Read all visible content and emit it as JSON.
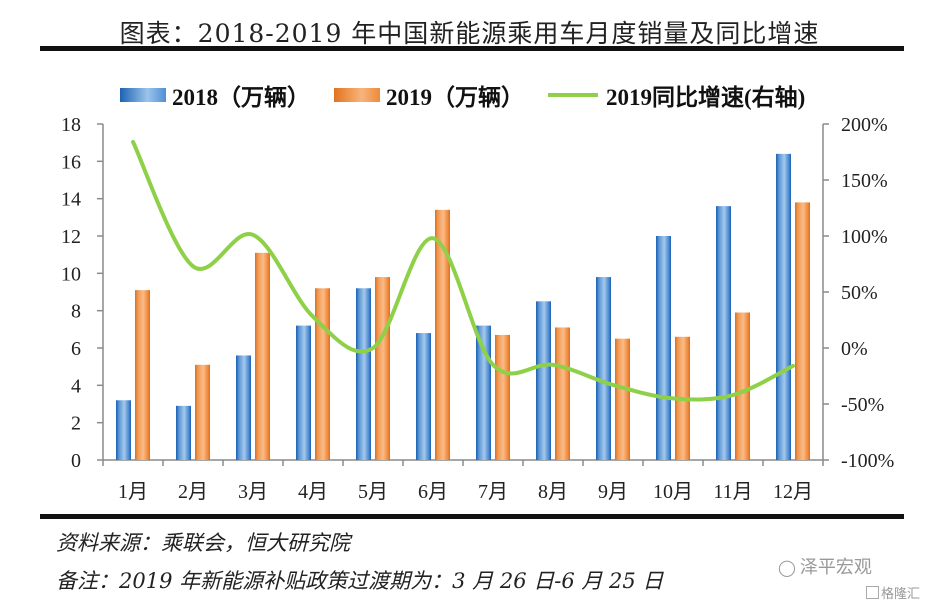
{
  "header": {
    "title": "图表：2018-2019 年中国新能源乘用车月度销量及同比增速"
  },
  "chart_data": {
    "type": "bar",
    "title": "图表：2018-2019 年中国新能源乘用车月度销量及同比增速",
    "categories": [
      "1月",
      "2月",
      "3月",
      "4月",
      "5月",
      "6月",
      "7月",
      "8月",
      "9月",
      "10月",
      "11月",
      "12月"
    ],
    "series": [
      {
        "name": "2018（万辆）",
        "type": "bar",
        "axis": "left",
        "color": "#1c64b4",
        "values": [
          3.2,
          2.9,
          5.6,
          7.2,
          9.2,
          6.8,
          7.2,
          8.5,
          9.8,
          12.0,
          13.6,
          16.4
        ]
      },
      {
        "name": "2019（万辆）",
        "type": "bar",
        "axis": "left",
        "color": "#e0741f",
        "values": [
          9.1,
          5.1,
          11.1,
          9.2,
          9.8,
          13.4,
          6.7,
          7.1,
          6.5,
          6.6,
          7.9,
          13.8
        ]
      },
      {
        "name": "2019同比增速(右轴)",
        "type": "line",
        "axis": "right",
        "color": "#8ed047",
        "smooth": true,
        "values": [
          184,
          73,
          101,
          28,
          0,
          98,
          -15,
          -15,
          -33,
          -45,
          -42,
          -16
        ]
      }
    ],
    "y_left": {
      "ylim": [
        0,
        18
      ],
      "ticks": [
        "0",
        "2",
        "4",
        "6",
        "8",
        "10",
        "12",
        "14",
        "16",
        "18"
      ]
    },
    "y_right": {
      "ylim": [
        -100,
        200
      ],
      "ticks": [
        "-100%",
        "-50%",
        "0%",
        "50%",
        "100%",
        "150%",
        "200%"
      ]
    },
    "xlabel": "",
    "ylabel": "",
    "grid": false,
    "legend_position": "top"
  },
  "legend": {
    "items": [
      "2018（万辆）",
      "2019（万辆）",
      "2019同比增速(右轴)"
    ]
  },
  "footer": {
    "source": "资料来源：乘联会，恒大研究院",
    "note": "备注：2019 年新能源补贴政策过渡期为：3 月 26 日-6 月 25 日"
  },
  "watermark": {
    "wechat": "泽平宏观",
    "site": "格隆汇"
  }
}
